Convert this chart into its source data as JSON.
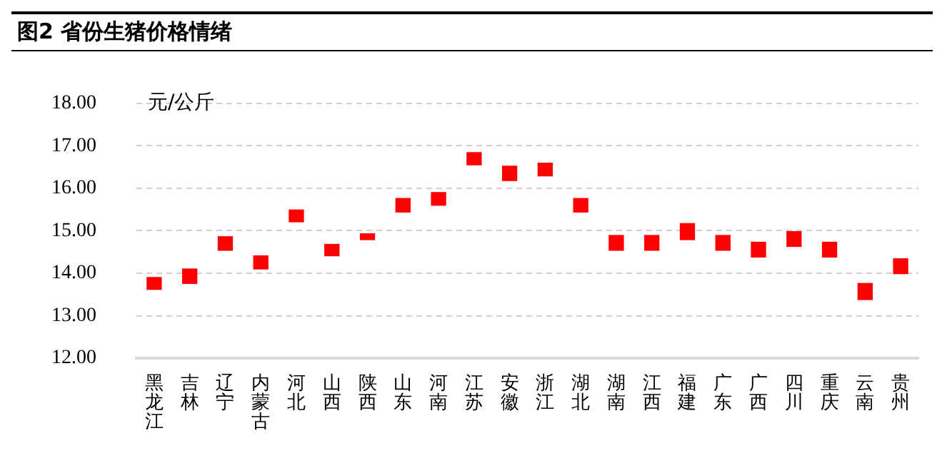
{
  "chart_data": {
    "type": "candlestick",
    "title": "图2 省份生猪价格情绪",
    "ylabel": "元/公斤",
    "categories": [
      "黑龙江",
      "吉林",
      "辽宁",
      "内蒙古",
      "河北",
      "山西",
      "陕西",
      "山东",
      "河南",
      "江苏",
      "安徽",
      "浙江",
      "湖北",
      "湖南",
      "江西",
      "福建",
      "广东",
      "广西",
      "四川",
      "重庆",
      "云南",
      "贵州"
    ],
    "ohlc": [
      [
        13.62,
        13.9,
        13.62,
        13.9
      ],
      [
        13.76,
        14.1,
        13.76,
        14.1
      ],
      [
        14.54,
        14.86,
        14.54,
        14.86
      ],
      [
        14.1,
        14.41,
        14.1,
        14.41
      ],
      [
        15.21,
        15.49,
        15.21,
        15.49
      ],
      [
        14.41,
        14.68,
        14.41,
        14.68
      ],
      [
        14.79,
        14.93,
        14.79,
        14.93
      ],
      [
        15.44,
        15.76,
        15.44,
        15.76
      ],
      [
        15.6,
        15.9,
        15.6,
        15.9
      ],
      [
        16.55,
        16.84,
        16.55,
        16.84
      ],
      [
        16.18,
        16.52,
        16.18,
        16.52
      ],
      [
        16.29,
        16.59,
        16.29,
        16.59
      ],
      [
        15.44,
        15.76,
        15.44,
        15.76
      ],
      [
        14.54,
        14.89,
        14.54,
        14.89
      ],
      [
        14.54,
        14.89,
        14.54,
        14.89
      ],
      [
        14.79,
        15.17,
        14.79,
        15.17
      ],
      [
        14.54,
        14.89,
        14.54,
        14.89
      ],
      [
        14.38,
        14.73,
        14.38,
        14.73
      ],
      [
        14.63,
        14.98,
        14.63,
        14.98
      ],
      [
        14.38,
        14.73,
        14.38,
        14.73
      ],
      [
        13.38,
        13.76,
        13.38,
        13.76
      ],
      [
        13.99,
        14.34,
        13.99,
        14.34
      ]
    ],
    "color": "#ff0000",
    "ylim": [
      12,
      18
    ],
    "yticks": [
      {
        "value": 12,
        "label": "12.00"
      },
      {
        "value": 13,
        "label": "13.00"
      },
      {
        "value": 14,
        "label": "14.00"
      },
      {
        "value": 15,
        "label": "15.00"
      },
      {
        "value": 16,
        "label": "16.00"
      },
      {
        "value": 17,
        "label": "17.00"
      },
      {
        "value": 18,
        "label": "18.00"
      }
    ],
    "grid": "y",
    "line_style": "dashed",
    "legend": false
  }
}
